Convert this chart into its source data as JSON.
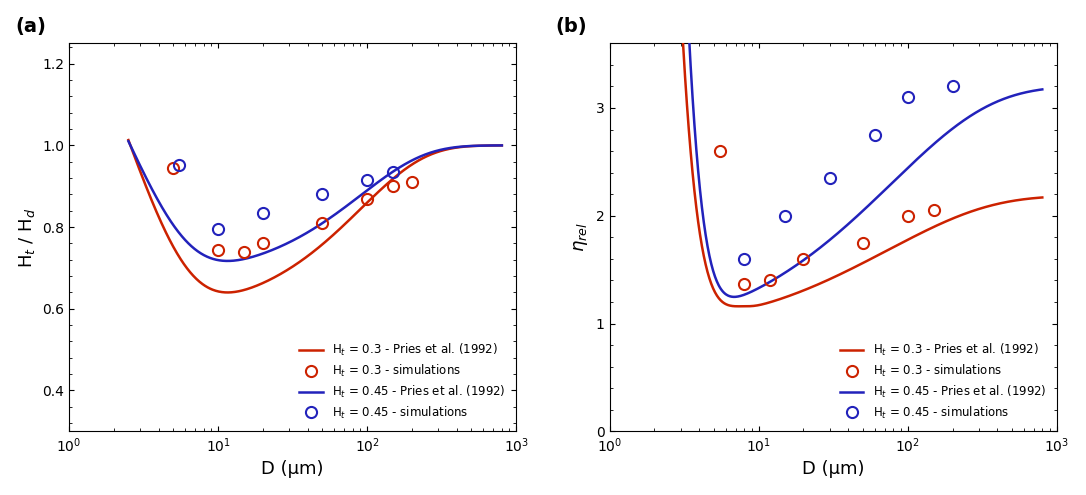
{
  "panel_a_label": "(a)",
  "panel_b_label": "(b)",
  "ylabel_a": "H$_t$ / H$_d$",
  "ylabel_b": "$\\eta_{rel}$",
  "xlabel": "D (μm)",
  "xlim": [
    1,
    1000
  ],
  "ylim_a": [
    0.3,
    1.25
  ],
  "ylim_b": [
    0.0,
    3.6
  ],
  "yticks_a": [
    0.4,
    0.6,
    0.8,
    1.0,
    1.2
  ],
  "yticks_b": [
    0,
    1,
    2,
    3
  ],
  "color_red": "#cc2200",
  "color_blue": "#2222bb",
  "legend_labels": [
    "H$_t$ = 0.3 - Pries et al. (1992)",
    "H$_t$ = 0.3 - simulations",
    "H$_t$ = 0.45 - Pries et al. (1992)",
    "H$_t$ = 0.45 - simulations"
  ],
  "sim_a_red_x": [
    5.0,
    10.0,
    15.0,
    20.0,
    50.0,
    100.0,
    150.0,
    200.0
  ],
  "sim_a_red_y": [
    0.945,
    0.745,
    0.74,
    0.76,
    0.81,
    0.87,
    0.9,
    0.91
  ],
  "sim_a_blue_x": [
    5.5,
    10.0,
    20.0,
    50.0,
    100.0,
    150.0
  ],
  "sim_a_blue_y": [
    0.953,
    0.795,
    0.835,
    0.882,
    0.915,
    0.935
  ],
  "sim_b_red_x": [
    5.5,
    8.0,
    12.0,
    20.0,
    50.0,
    100.0,
    150.0
  ],
  "sim_b_red_y": [
    2.6,
    1.37,
    1.4,
    1.6,
    1.75,
    2.0,
    2.05
  ],
  "sim_b_blue_x": [
    8.0,
    15.0,
    30.0,
    60.0,
    100.0,
    200.0
  ],
  "sim_b_blue_y": [
    1.6,
    2.0,
    2.35,
    2.75,
    3.1,
    3.2
  ],
  "D_curve_min": 2.5,
  "D_curve_max": 800.0,
  "Ht_values": [
    0.3,
    0.45
  ]
}
